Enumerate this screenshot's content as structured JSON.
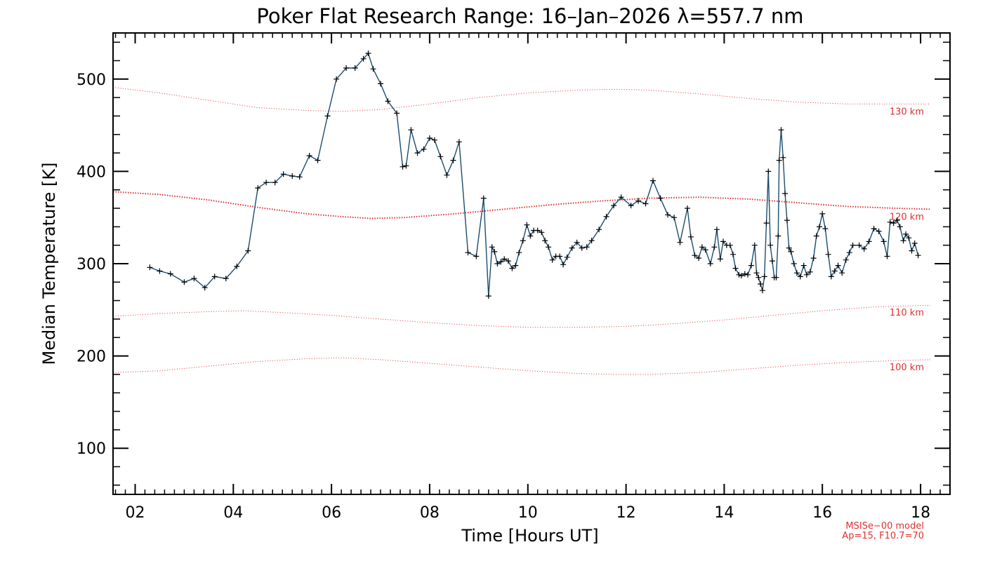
{
  "chart_data": {
    "type": "line",
    "title": "Poker Flat Research Range: 16–Jan–2026 λ=557.7 nm",
    "xlabel": "Time [Hours UT]",
    "ylabel": "Median Temperature [K]",
    "xlim": [
      1.55,
      18.6
    ],
    "ylim": [
      50,
      550
    ],
    "x_ticks": [
      2,
      4,
      6,
      8,
      10,
      12,
      14,
      16,
      18
    ],
    "x_tick_labels": [
      "02",
      "04",
      "06",
      "08",
      "10",
      "12",
      "14",
      "16",
      "18"
    ],
    "y_ticks": [
      100,
      200,
      300,
      400,
      500
    ],
    "y_tick_labels": [
      "100",
      "200",
      "300",
      "400",
      "500"
    ],
    "grid": false,
    "series": [
      {
        "marker": "plus",
        "color": "#1a4d6e",
        "points": [
          [
            2.3,
            296
          ],
          [
            2.5,
            292
          ],
          [
            2.72,
            289
          ],
          [
            3.0,
            280
          ],
          [
            3.2,
            284
          ],
          [
            3.42,
            274
          ],
          [
            3.62,
            286
          ],
          [
            3.85,
            284
          ],
          [
            4.07,
            297
          ],
          [
            4.3,
            314
          ],
          [
            4.5,
            382
          ],
          [
            4.67,
            388
          ],
          [
            4.85,
            388
          ],
          [
            5.02,
            397
          ],
          [
            5.2,
            395
          ],
          [
            5.35,
            394
          ],
          [
            5.55,
            417
          ],
          [
            5.72,
            412
          ],
          [
            5.92,
            460
          ],
          [
            6.1,
            500
          ],
          [
            6.3,
            512
          ],
          [
            6.48,
            512
          ],
          [
            6.65,
            522
          ],
          [
            6.75,
            528
          ],
          [
            6.85,
            511
          ],
          [
            7.0,
            495
          ],
          [
            7.15,
            476
          ],
          [
            7.33,
            463
          ],
          [
            7.45,
            405
          ],
          [
            7.52,
            406
          ],
          [
            7.62,
            445
          ],
          [
            7.75,
            420
          ],
          [
            7.88,
            424
          ],
          [
            8.0,
            436
          ],
          [
            8.1,
            434
          ],
          [
            8.22,
            416
          ],
          [
            8.35,
            396
          ],
          [
            8.48,
            412
          ],
          [
            8.6,
            432
          ],
          [
            8.78,
            312
          ],
          [
            8.95,
            308
          ],
          [
            9.1,
            371
          ],
          [
            9.2,
            265
          ],
          [
            9.27,
            318
          ],
          [
            9.32,
            313
          ],
          [
            9.38,
            300
          ],
          [
            9.45,
            302
          ],
          [
            9.52,
            305
          ],
          [
            9.6,
            303
          ],
          [
            9.68,
            295
          ],
          [
            9.75,
            298
          ],
          [
            9.82,
            312
          ],
          [
            9.9,
            325
          ],
          [
            9.98,
            342
          ],
          [
            10.05,
            330
          ],
          [
            10.12,
            336
          ],
          [
            10.2,
            336
          ],
          [
            10.28,
            334
          ],
          [
            10.35,
            325
          ],
          [
            10.42,
            318
          ],
          [
            10.5,
            304
          ],
          [
            10.57,
            308
          ],
          [
            10.65,
            308
          ],
          [
            10.72,
            299
          ],
          [
            10.8,
            307
          ],
          [
            10.9,
            317
          ],
          [
            11.0,
            323
          ],
          [
            11.1,
            317
          ],
          [
            11.2,
            318
          ],
          [
            11.3,
            325
          ],
          [
            11.45,
            337
          ],
          [
            11.6,
            351
          ],
          [
            11.75,
            363
          ],
          [
            11.9,
            372
          ],
          [
            12.1,
            363
          ],
          [
            12.25,
            368
          ],
          [
            12.4,
            365
          ],
          [
            12.55,
            390
          ],
          [
            12.7,
            371
          ],
          [
            12.85,
            353
          ],
          [
            12.98,
            350
          ],
          [
            13.1,
            323
          ],
          [
            13.25,
            360
          ],
          [
            13.32,
            329
          ],
          [
            13.4,
            309
          ],
          [
            13.48,
            306
          ],
          [
            13.55,
            318
          ],
          [
            13.62,
            315
          ],
          [
            13.72,
            300
          ],
          [
            13.8,
            318
          ],
          [
            13.85,
            337
          ],
          [
            13.92,
            305
          ],
          [
            13.98,
            324
          ],
          [
            14.05,
            320
          ],
          [
            14.12,
            320
          ],
          [
            14.18,
            310
          ],
          [
            14.23,
            295
          ],
          [
            14.3,
            288
          ],
          [
            14.35,
            287
          ],
          [
            14.42,
            289
          ],
          [
            14.48,
            288
          ],
          [
            14.55,
            298
          ],
          [
            14.62,
            320
          ],
          [
            14.66,
            290
          ],
          [
            14.7,
            285
          ],
          [
            14.74,
            278
          ],
          [
            14.78,
            271
          ],
          [
            14.82,
            286
          ],
          [
            14.86,
            344
          ],
          [
            14.9,
            400
          ],
          [
            14.94,
            320
          ],
          [
            14.98,
            303
          ],
          [
            15.02,
            285
          ],
          [
            15.06,
            285
          ],
          [
            15.1,
            330
          ],
          [
            15.12,
            412
          ],
          [
            15.16,
            445
          ],
          [
            15.2,
            415
          ],
          [
            15.24,
            376
          ],
          [
            15.28,
            347
          ],
          [
            15.32,
            317
          ],
          [
            15.36,
            313
          ],
          [
            15.42,
            300
          ],
          [
            15.48,
            290
          ],
          [
            15.55,
            286
          ],
          [
            15.62,
            298
          ],
          [
            15.68,
            288
          ],
          [
            15.75,
            291
          ],
          [
            15.82,
            306
          ],
          [
            15.88,
            330
          ],
          [
            15.94,
            340
          ],
          [
            16.0,
            354
          ],
          [
            16.06,
            338
          ],
          [
            16.12,
            310
          ],
          [
            16.18,
            286
          ],
          [
            16.25,
            292
          ],
          [
            16.32,
            298
          ],
          [
            16.4,
            290
          ],
          [
            16.48,
            304
          ],
          [
            16.55,
            312
          ],
          [
            16.62,
            320
          ],
          [
            16.75,
            320
          ],
          [
            16.85,
            316
          ],
          [
            16.95,
            324
          ],
          [
            17.05,
            338
          ],
          [
            17.15,
            335
          ],
          [
            17.25,
            324
          ],
          [
            17.32,
            308
          ],
          [
            17.38,
            345
          ],
          [
            17.45,
            344
          ],
          [
            17.52,
            347
          ],
          [
            17.58,
            340
          ],
          [
            17.65,
            325
          ],
          [
            17.7,
            332
          ],
          [
            17.76,
            328
          ],
          [
            17.82,
            314
          ],
          [
            17.88,
            322
          ],
          [
            17.95,
            309
          ]
        ]
      }
    ],
    "model_curves": [
      {
        "label": "130 km",
        "color": "#e03030",
        "points": [
          [
            1.55,
            491
          ],
          [
            2.5,
            485
          ],
          [
            3.5,
            477
          ],
          [
            4.5,
            469
          ],
          [
            5.5,
            466
          ],
          [
            6.2,
            465
          ],
          [
            7.0,
            467
          ],
          [
            8.0,
            473
          ],
          [
            9.0,
            480
          ],
          [
            10.0,
            485
          ],
          [
            11.0,
            488
          ],
          [
            11.8,
            489
          ],
          [
            12.5,
            488
          ],
          [
            13.5,
            484
          ],
          [
            14.5,
            479
          ],
          [
            15.5,
            475
          ],
          [
            16.5,
            473
          ],
          [
            17.5,
            473
          ],
          [
            18.2,
            473
          ]
        ]
      },
      {
        "label": "120 km",
        "color": "#e03030",
        "points": [
          [
            1.55,
            378
          ],
          [
            2.5,
            375
          ],
          [
            3.5,
            369
          ],
          [
            4.5,
            361
          ],
          [
            5.5,
            354
          ],
          [
            6.2,
            351
          ],
          [
            6.8,
            349
          ],
          [
            7.5,
            350
          ],
          [
            8.5,
            354
          ],
          [
            9.5,
            359
          ],
          [
            10.5,
            364
          ],
          [
            11.5,
            368
          ],
          [
            12.5,
            371
          ],
          [
            13.5,
            372
          ],
          [
            14.5,
            370
          ],
          [
            15.5,
            366
          ],
          [
            16.5,
            362
          ],
          [
            17.5,
            360
          ],
          [
            18.2,
            359
          ]
        ]
      },
      {
        "label": "110 km",
        "color": "#e03030",
        "points": [
          [
            1.55,
            243
          ],
          [
            2.5,
            246
          ],
          [
            3.5,
            248
          ],
          [
            4.2,
            249
          ],
          [
            5.0,
            247
          ],
          [
            6.0,
            244
          ],
          [
            7.0,
            240
          ],
          [
            8.0,
            236
          ],
          [
            9.0,
            233
          ],
          [
            10.0,
            231
          ],
          [
            11.0,
            231
          ],
          [
            12.0,
            232
          ],
          [
            13.0,
            235
          ],
          [
            14.0,
            239
          ],
          [
            15.0,
            244
          ],
          [
            16.0,
            249
          ],
          [
            17.0,
            253
          ],
          [
            18.2,
            255
          ]
        ]
      },
      {
        "label": "100 km",
        "color": "#e03030",
        "points": [
          [
            1.55,
            182
          ],
          [
            2.5,
            184
          ],
          [
            3.5,
            189
          ],
          [
            4.5,
            194
          ],
          [
            5.5,
            197
          ],
          [
            6.2,
            198
          ],
          [
            7.0,
            196
          ],
          [
            8.0,
            192
          ],
          [
            9.0,
            188
          ],
          [
            10.0,
            184
          ],
          [
            11.0,
            181
          ],
          [
            11.8,
            180
          ],
          [
            12.5,
            180
          ],
          [
            13.5,
            182
          ],
          [
            14.5,
            186
          ],
          [
            15.5,
            190
          ],
          [
            16.5,
            193
          ],
          [
            17.5,
            195
          ],
          [
            18.2,
            196
          ]
        ]
      }
    ],
    "model_note_line1": "MSISe−00 model",
    "model_note_line2": "Ap=15, F10.7=70"
  }
}
